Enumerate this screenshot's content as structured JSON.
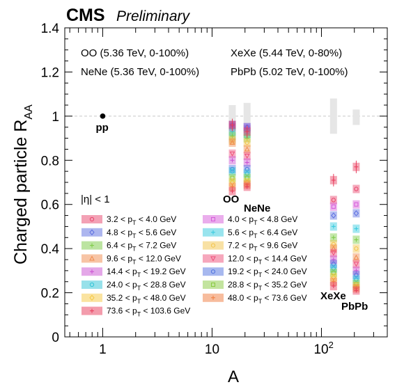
{
  "header": {
    "experiment": "CMS",
    "status": "Preliminary"
  },
  "chart_data": {
    "type": "scatter",
    "xlabel": "A",
    "ylabel": "Charged particle R",
    "ylabel_sub": "AA",
    "x_scale": "log",
    "xlim": [
      0.45,
      400
    ],
    "ylim": [
      0,
      1.4
    ],
    "x_ticks": [
      {
        "value": 1,
        "label": "1"
      },
      {
        "value": 10,
        "label": "10"
      },
      {
        "value": 100,
        "label": "10",
        "sup": "2"
      }
    ],
    "y_ticks": [
      0,
      0.2,
      0.4,
      0.6,
      0.8,
      1,
      1.2,
      1.4
    ],
    "y_tick_labels": [
      "0",
      "0.2",
      "0.4",
      "0.6",
      "0.8",
      "1",
      "1.2",
      "1.4"
    ],
    "reference_line": {
      "y": 1.0,
      "style": "dashed gray"
    },
    "system_labels": [
      {
        "text": "OO (5.36 TeV, 0-100%)"
      },
      {
        "text": "XeXe (5.44 TeV, 0-80%)"
      },
      {
        "text": "NeNe (5.36 TeV, 0-100%)"
      },
      {
        "text": "PbPb (5.02 TeV, 0-100%)"
      }
    ],
    "eta_cut": "|η| < 1",
    "pp": {
      "A": 1,
      "value": 1.0,
      "label": "pp"
    },
    "systems": [
      {
        "name": "OO",
        "A": 16,
        "norm_unc": [
          0.88,
          1.05
        ],
        "values": [
          0.95,
          0.96,
          0.96,
          0.93,
          0.91,
          0.89,
          0.88,
          0.83,
          0.8,
          0.76,
          0.75,
          0.72,
          0.7,
          0.68,
          0.66
        ]
      },
      {
        "name": "NeNe",
        "A": 20,
        "norm_unc": [
          0.9,
          1.06
        ],
        "values": [
          0.94,
          0.95,
          0.95,
          0.92,
          0.9,
          0.88,
          0.85,
          0.82,
          0.79,
          0.76,
          0.74,
          0.72,
          0.7,
          0.69,
          0.68
        ]
      },
      {
        "name": "XeXe",
        "A": 129,
        "norm_unc": [
          0.92,
          1.08
        ],
        "values": [
          0.62,
          0.59,
          0.55,
          0.5,
          0.45,
          0.42,
          0.4,
          0.38,
          0.35,
          0.33,
          0.31,
          0.29,
          0.27,
          0.25,
          0.23
        ]
      },
      {
        "name": "PbPb",
        "A": 208,
        "norm_unc": [
          0.96,
          1.03
        ],
        "values": [
          0.67,
          0.6,
          0.56,
          0.49,
          0.44,
          0.4,
          0.36,
          0.33,
          0.3,
          0.28,
          0.26,
          0.24,
          0.23,
          0.22,
          0.21
        ]
      }
    ],
    "extra_points": [
      {
        "system": "OO",
        "bin": "73.6 < pT < 103.6 GeV",
        "value": 0.96
      },
      {
        "system": "NeNe",
        "bin": "73.6 < pT < 103.6 GeV",
        "value": 0.93
      },
      {
        "system": "XeXe",
        "bin": "73.6 < pT < 103.6 GeV",
        "value": 0.71
      },
      {
        "system": "PbPb",
        "bin": "73.6 < pT < 103.6 GeV",
        "value": 0.77
      }
    ],
    "series": [
      {
        "name": "3.2 < pT < 4.0 GeV",
        "lo": "3.2",
        "hi": "4.0 GeV",
        "color": "#e8436b",
        "marker": "circle"
      },
      {
        "name": "4.0 < pT < 4.8 GeV",
        "lo": "4.0",
        "hi": "4.8 GeV",
        "color": "#d65bd9",
        "marker": "square"
      },
      {
        "name": "4.8 < pT < 5.6 GeV",
        "lo": "4.8",
        "hi": "5.6 GeV",
        "color": "#5b6ee0",
        "marker": "diamond"
      },
      {
        "name": "5.6 < pT < 6.4 GeV",
        "lo": "5.6",
        "hi": "6.4 GeV",
        "color": "#33c9de",
        "marker": "star"
      },
      {
        "name": "6.4 < pT < 7.2 GeV",
        "lo": "6.4",
        "hi": "7.2 GeV",
        "color": "#7ac943",
        "marker": "cross"
      },
      {
        "name": "7.2 < pT < 9.6 GeV",
        "lo": "7.2",
        "hi": "9.6 GeV",
        "color": "#f2c44a",
        "marker": "circle"
      },
      {
        "name": "9.6 < pT < 12.0 GeV",
        "lo": "9.6",
        "hi": "12.0 GeV",
        "color": "#f08a4b",
        "marker": "triangle-up"
      },
      {
        "name": "12.0 < pT < 14.4 GeV",
        "lo": "12.0",
        "hi": "14.4 GeV",
        "color": "#ee4f79",
        "marker": "triangle-down"
      },
      {
        "name": "14.4 < pT < 19.2 GeV",
        "lo": "14.4",
        "hi": "19.2 GeV",
        "color": "#c94fd1",
        "marker": "asterisk"
      },
      {
        "name": "19.2 < pT < 24.0 GeV",
        "lo": "19.2",
        "hi": "24.0 GeV",
        "color": "#4f72df",
        "marker": "circle"
      },
      {
        "name": "24.0 < pT < 28.8 GeV",
        "lo": "24.0",
        "hi": "28.8 GeV",
        "color": "#2fc4d6",
        "marker": "circle"
      },
      {
        "name": "28.8 < pT < 35.2 GeV",
        "lo": "28.8",
        "hi": "35.2 GeV",
        "color": "#88c93f",
        "marker": "square"
      },
      {
        "name": "35.2 < pT < 48.0 GeV",
        "lo": "35.2",
        "hi": "48.0 GeV",
        "color": "#f5c842",
        "marker": "diamond"
      },
      {
        "name": "48.0 < pT < 73.6 GeV",
        "lo": "48.0",
        "hi": "73.6 GeV",
        "color": "#f07a3c",
        "marker": "star"
      },
      {
        "name": "73.6 < pT < 103.6 GeV",
        "lo": "73.6",
        "hi": "103.6 GeV",
        "color": "#e83a5a",
        "marker": "cross"
      }
    ]
  }
}
